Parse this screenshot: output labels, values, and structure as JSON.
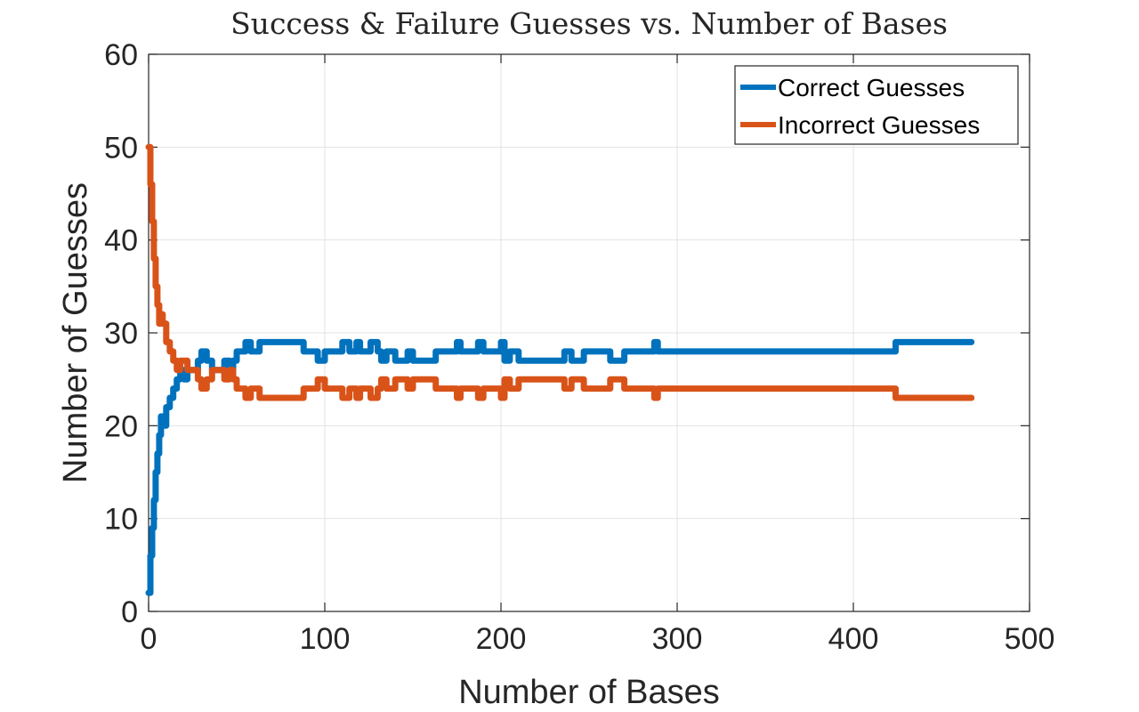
{
  "chart_data": {
    "type": "line",
    "title": "Success & Failure Guesses vs. Number of Bases",
    "xlabel": "Number of Bases",
    "ylabel": "Number of Guesses",
    "xlim": [
      0,
      500
    ],
    "ylim": [
      0,
      60
    ],
    "xticks": [
      0,
      100,
      200,
      300,
      400,
      500
    ],
    "yticks": [
      0,
      10,
      20,
      30,
      40,
      50,
      60
    ],
    "xtick_labels": [
      "0",
      "100",
      "200",
      "300",
      "400",
      "500"
    ],
    "ytick_labels": [
      "0",
      "10",
      "20",
      "30",
      "40",
      "50",
      "60"
    ],
    "grid": true,
    "legend_position": "top-right",
    "series": [
      {
        "name": "Correct Guesses",
        "color": "#0072BD",
        "x": [
          0,
          1,
          2,
          3,
          4,
          5,
          6,
          7,
          8,
          10,
          12,
          14,
          16,
          18,
          20,
          22,
          25,
          28,
          30,
          33,
          36,
          38,
          40,
          43,
          46,
          48,
          50,
          52,
          55,
          58,
          60,
          63,
          70,
          80,
          87,
          88,
          95,
          96,
          100,
          108,
          110,
          114,
          118,
          120,
          125,
          126,
          130,
          132,
          135,
          140,
          145,
          147,
          150,
          160,
          163,
          170,
          175,
          177,
          180,
          185,
          187,
          190,
          195,
          200,
          202,
          205,
          210,
          215,
          225,
          235,
          236,
          240,
          245,
          247,
          255,
          260,
          262,
          265,
          270,
          272,
          280,
          287,
          289,
          291,
          300,
          350,
          400,
          422,
          424,
          440,
          467
        ],
        "y": [
          2,
          6,
          9,
          12,
          15,
          17,
          19,
          21,
          20,
          22,
          23,
          24,
          25,
          26,
          25,
          26,
          26,
          27,
          28,
          27,
          26,
          26,
          26,
          27,
          26,
          27,
          28,
          28,
          29,
          28,
          28,
          29,
          29,
          29,
          29,
          28,
          28,
          27,
          28,
          28,
          29,
          28,
          29,
          28,
          28,
          29,
          28,
          27,
          28,
          27,
          27,
          28,
          27,
          27,
          28,
          28,
          29,
          28,
          28,
          28,
          29,
          28,
          28,
          29,
          27,
          28,
          27,
          27,
          27,
          27,
          28,
          27,
          27,
          28,
          28,
          28,
          27,
          27,
          28,
          28,
          28,
          29,
          28,
          28,
          28,
          28,
          28,
          28,
          29,
          29,
          29
        ]
      },
      {
        "name": "Incorrect Guesses",
        "color": "#D95319",
        "x": [
          0,
          1,
          2,
          3,
          4,
          5,
          6,
          7,
          8,
          10,
          12,
          14,
          16,
          18,
          20,
          22,
          25,
          28,
          30,
          33,
          36,
          38,
          40,
          43,
          46,
          48,
          50,
          52,
          55,
          58,
          60,
          63,
          70,
          80,
          87,
          88,
          95,
          96,
          100,
          108,
          110,
          114,
          118,
          120,
          125,
          126,
          130,
          132,
          135,
          140,
          145,
          147,
          150,
          160,
          163,
          170,
          175,
          177,
          180,
          185,
          187,
          190,
          195,
          200,
          202,
          205,
          210,
          215,
          225,
          235,
          236,
          240,
          245,
          247,
          255,
          260,
          262,
          265,
          270,
          272,
          280,
          287,
          289,
          291,
          300,
          350,
          400,
          422,
          424,
          440,
          467
        ],
        "y": [
          50,
          46,
          42,
          38,
          35,
          33,
          31,
          32,
          31,
          29,
          28,
          27,
          26,
          27,
          27,
          26,
          26,
          25,
          24,
          25,
          26,
          26,
          26,
          25,
          26,
          25,
          24,
          24,
          23,
          24,
          24,
          23,
          23,
          23,
          23,
          24,
          24,
          25,
          24,
          24,
          23,
          24,
          23,
          24,
          24,
          23,
          24,
          25,
          24,
          25,
          25,
          24,
          25,
          25,
          24,
          24,
          23,
          24,
          24,
          24,
          23,
          24,
          24,
          23,
          25,
          24,
          25,
          25,
          25,
          25,
          24,
          25,
          25,
          24,
          24,
          24,
          25,
          25,
          24,
          24,
          24,
          23,
          24,
          24,
          24,
          24,
          24,
          24,
          23,
          23,
          23
        ]
      }
    ]
  }
}
